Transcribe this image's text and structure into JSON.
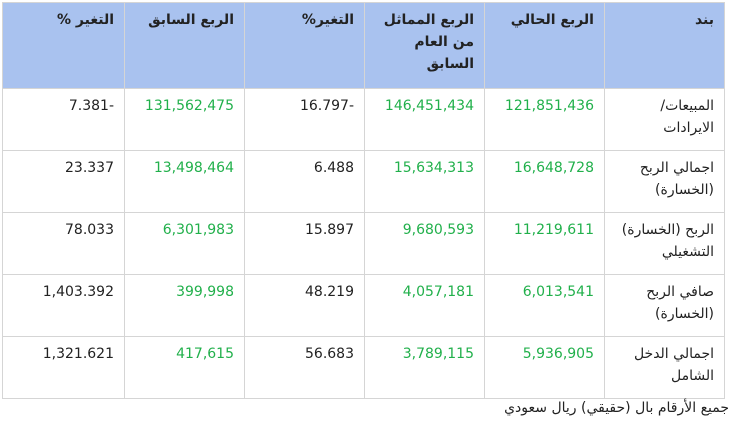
{
  "table": {
    "header": [
      "بند",
      "الربع الحالي",
      "الربع المماثل من العام السابق",
      "التغير%",
      "الربع السابق",
      "التغير %"
    ],
    "rows": [
      [
        "المبيعات/ الايرادات",
        "121,851,436",
        "146,451,434",
        "16.797-",
        "131,562,475",
        "7.381-"
      ],
      [
        "اجمالي الربح (الخسارة)",
        "16,648,728",
        "15,634,313",
        "6.488",
        "13,498,464",
        "23.337"
      ],
      [
        "الربح (الخسارة) التشغيلي",
        "11,219,611",
        "9,680,593",
        "15.897",
        "6,301,983",
        "78.033"
      ],
      [
        "صافي الربح (الخسارة)",
        "6,013,541",
        "4,057,181",
        "48.219",
        "399,998",
        "1,403.392"
      ],
      [
        "اجمالي الدخل الشامل",
        "5,936,905",
        "3,789,115",
        "56.683",
        "417,615",
        "1,321.621"
      ]
    ]
  },
  "footer": "جميع الأرقام بال (حقيقي) ريال سعودي"
}
